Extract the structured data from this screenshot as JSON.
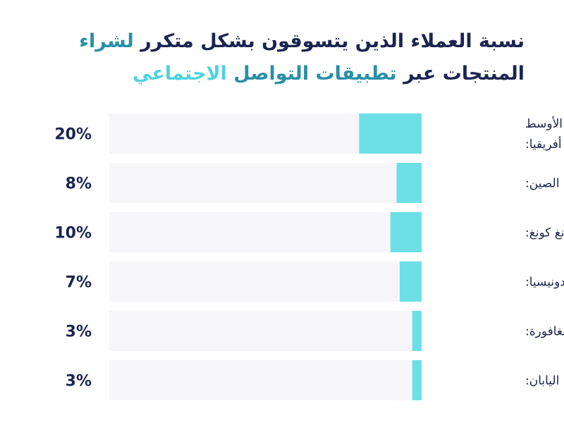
{
  "title": {
    "line1_part1": "نسبة العملاء الذين يتسوقون بشكل متكرر ",
    "line1_part2": "لشراء",
    "line2_part1": "المنتجات عبر ",
    "line2_part2": "تطبيقات التواصل ",
    "line2_part3": "الاجتماعي"
  },
  "colors": {
    "navy": "#1b2550",
    "teal": "#2a8fa8",
    "cyan": "#4fd3de",
    "bar_fill": "#6ce0e6",
    "track": "#f6f6f9"
  },
  "chart_data": {
    "type": "bar",
    "orientation": "horizontal",
    "categories": [
      [
        "الشرق الأوسط",
        "وشمال أفريقيا:"
      ],
      [
        "الصين:"
      ],
      [
        "هونغ كونغ:"
      ],
      [
        "إندونيسيا:"
      ],
      [
        "سنغافورة:"
      ],
      [
        "اليابان:"
      ]
    ],
    "values": [
      20,
      8,
      10,
      7,
      3,
      3
    ],
    "value_labels": [
      "20%",
      "8%",
      "10%",
      "7%",
      "3%",
      "3%"
    ],
    "xlim": [
      0,
      100
    ],
    "grid": false,
    "legend": "none"
  }
}
